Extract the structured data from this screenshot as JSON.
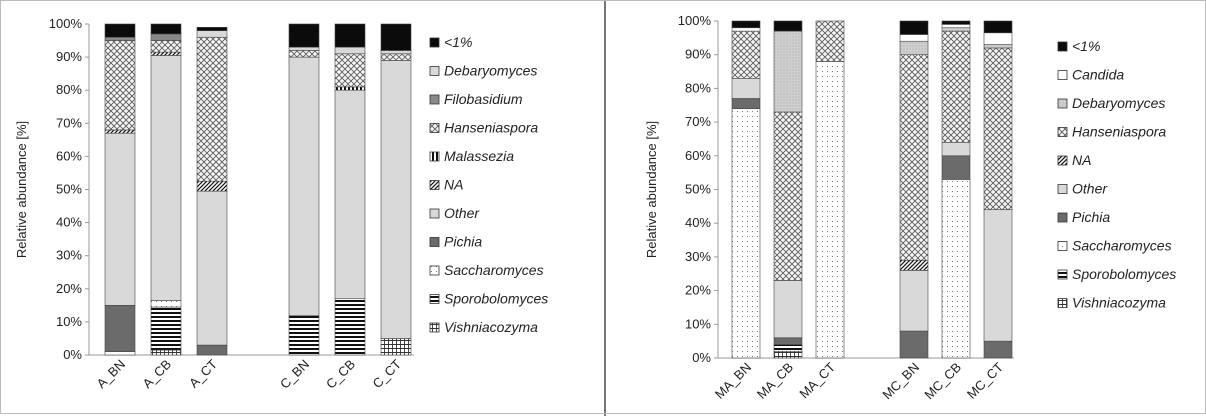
{
  "chart_data": [
    {
      "type": "bar",
      "stacked": true,
      "ylabel": "Relative abundance [%]",
      "ylim": [
        0,
        100
      ],
      "yticks": [
        "0%",
        "10%",
        "20%",
        "30%",
        "40%",
        "50%",
        "60%",
        "70%",
        "80%",
        "90%",
        "100%"
      ],
      "categories": [
        "A_BN",
        "A_CB",
        "A_CT",
        "",
        "C_BN",
        "C_CB",
        "C_CT"
      ],
      "legend_position": "right",
      "series": [
        {
          "name": "Vishniacozyma",
          "pattern": "grid",
          "values": [
            0,
            1.5,
            0,
            0,
            0,
            0,
            5
          ]
        },
        {
          "name": "Sporobolomyces",
          "pattern": "hstripe",
          "values": [
            0,
            13,
            0,
            0,
            12,
            17,
            0
          ]
        },
        {
          "name": "Saccharomyces",
          "pattern": "dots",
          "values": [
            1,
            2,
            0,
            0,
            0,
            0,
            0
          ]
        },
        {
          "name": "Pichia",
          "pattern": "dark",
          "values": [
            14,
            0,
            3,
            0,
            0,
            0,
            0
          ]
        },
        {
          "name": "Other",
          "pattern": "lightgray",
          "values": [
            52,
            74,
            46.5,
            0,
            78,
            63,
            84
          ]
        },
        {
          "name": "NA",
          "pattern": "diag",
          "values": [
            1,
            1,
            3,
            0,
            0,
            0,
            0
          ]
        },
        {
          "name": "Malassezia",
          "pattern": "vstripe",
          "values": [
            0,
            0,
            0,
            0,
            0,
            1,
            0
          ]
        },
        {
          "name": "Hanseniaspora",
          "pattern": "cross",
          "values": [
            27,
            3.5,
            43.5,
            0,
            2,
            10,
            2
          ]
        },
        {
          "name": "Filobasidium",
          "pattern": "midgray",
          "values": [
            1,
            2,
            0,
            0,
            0,
            0,
            0
          ]
        },
        {
          "name": "Debaryomyces",
          "pattern": "lightgray",
          "values": [
            0,
            0,
            2,
            0,
            1,
            2,
            1
          ]
        },
        {
          "name": "<1%",
          "pattern": "black",
          "values": [
            4,
            3,
            1,
            0,
            7,
            7,
            8
          ]
        }
      ]
    },
    {
      "type": "bar",
      "stacked": true,
      "ylabel": "Relative abundance [%]",
      "ylim": [
        0,
        100
      ],
      "yticks": [
        "0%",
        "10%",
        "20%",
        "30%",
        "40%",
        "50%",
        "60%",
        "70%",
        "80%",
        "90%",
        "100%"
      ],
      "categories": [
        "MA_BN",
        "MA_CB",
        "MA_CT",
        "",
        "MC_BN",
        "MC_CB",
        "MC_CT"
      ],
      "legend_position": "right",
      "series": [
        {
          "name": "Vishniacozyma",
          "pattern": "grid",
          "values": [
            0,
            2,
            0,
            0,
            0,
            0,
            0
          ]
        },
        {
          "name": "Sporobolomyces",
          "pattern": "hstripe",
          "values": [
            0,
            2,
            0,
            0,
            0,
            0,
            0
          ]
        },
        {
          "name": "Saccharomyces",
          "pattern": "dots",
          "values": [
            74,
            0,
            88,
            0,
            0,
            53,
            0
          ]
        },
        {
          "name": "Pichia",
          "pattern": "dark",
          "values": [
            3,
            2,
            0,
            0,
            8,
            7,
            5
          ]
        },
        {
          "name": "Other",
          "pattern": "lightgray",
          "values": [
            6,
            17,
            0,
            0,
            18,
            4,
            39
          ]
        },
        {
          "name": "NA",
          "pattern": "diag",
          "values": [
            0,
            0,
            0,
            0,
            3,
            0,
            0
          ]
        },
        {
          "name": "Hanseniaspora",
          "pattern": "cross",
          "values": [
            14,
            50,
            12,
            0,
            61,
            33,
            48
          ]
        },
        {
          "name": "Debaryomyces",
          "pattern": "dense",
          "values": [
            0,
            24,
            0,
            0,
            4,
            1,
            1
          ]
        },
        {
          "name": "Candida",
          "pattern": "white",
          "values": [
            1,
            0,
            0,
            0,
            2,
            1,
            3.5
          ]
        },
        {
          "name": "<1%",
          "pattern": "black",
          "values": [
            2,
            3,
            0,
            0,
            4,
            1,
            3.5
          ]
        }
      ]
    }
  ]
}
